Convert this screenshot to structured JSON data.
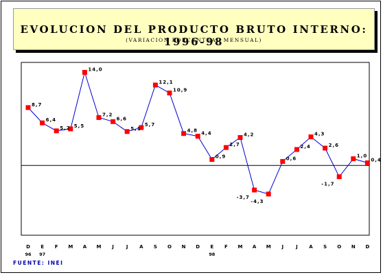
{
  "title": "EVOLUCION DEL PRODUCTO BRUTO INTERNO: 1996-98",
  "subtitle": "(VARIACION PORCENTUAL MENSUAL)",
  "source": "FUENTE: INEI",
  "chart_data": {
    "type": "line",
    "title": "EVOLUCION DEL PRODUCTO BRUTO INTERNO: 1996-98",
    "subtitle": "(VARIACION PORCENTUAL MENSUAL)",
    "xlabel": "",
    "ylabel": "",
    "categories": [
      "D",
      "E",
      "F",
      "M",
      "A",
      "M",
      "J",
      "J",
      "A",
      "S",
      "O",
      "N",
      "D",
      "E",
      "F",
      "M",
      "A",
      "M",
      "J",
      "J",
      "A",
      "S",
      "O",
      "N",
      "D"
    ],
    "year_labels": [
      {
        "index": 0,
        "text": "96"
      },
      {
        "index": 1,
        "text": "97"
      },
      {
        "index": 13,
        "text": "98"
      }
    ],
    "values": [
      8.7,
      6.4,
      5.2,
      5.5,
      14.0,
      7.2,
      6.6,
      5.1,
      5.7,
      12.1,
      10.9,
      4.8,
      4.4,
      0.9,
      2.7,
      4.2,
      -3.7,
      -4.3,
      0.6,
      2.4,
      4.3,
      2.6,
      -1.7,
      1.0,
      0.4
    ],
    "value_labels": [
      "8,7",
      "6,4",
      "5,2",
      "5,5",
      "14,0",
      "7,2",
      "6,6",
      "5,1",
      "5,7",
      "12,1",
      "10,9",
      "4,8",
      "4,4",
      "0,9",
      "2,7",
      "4,2",
      "-3,7",
      "-4,3",
      "0,6",
      "2,4",
      "4,3",
      "2,6",
      "-1,7",
      "1,0",
      "0,4"
    ],
    "ylim": [
      -10.5,
      15.5
    ],
    "grid": false,
    "zero_line": true,
    "colors": {
      "line": "#0000cc",
      "marker": "#ff0000",
      "title_bg": "#ffffc0",
      "source": "#0000aa"
    }
  }
}
